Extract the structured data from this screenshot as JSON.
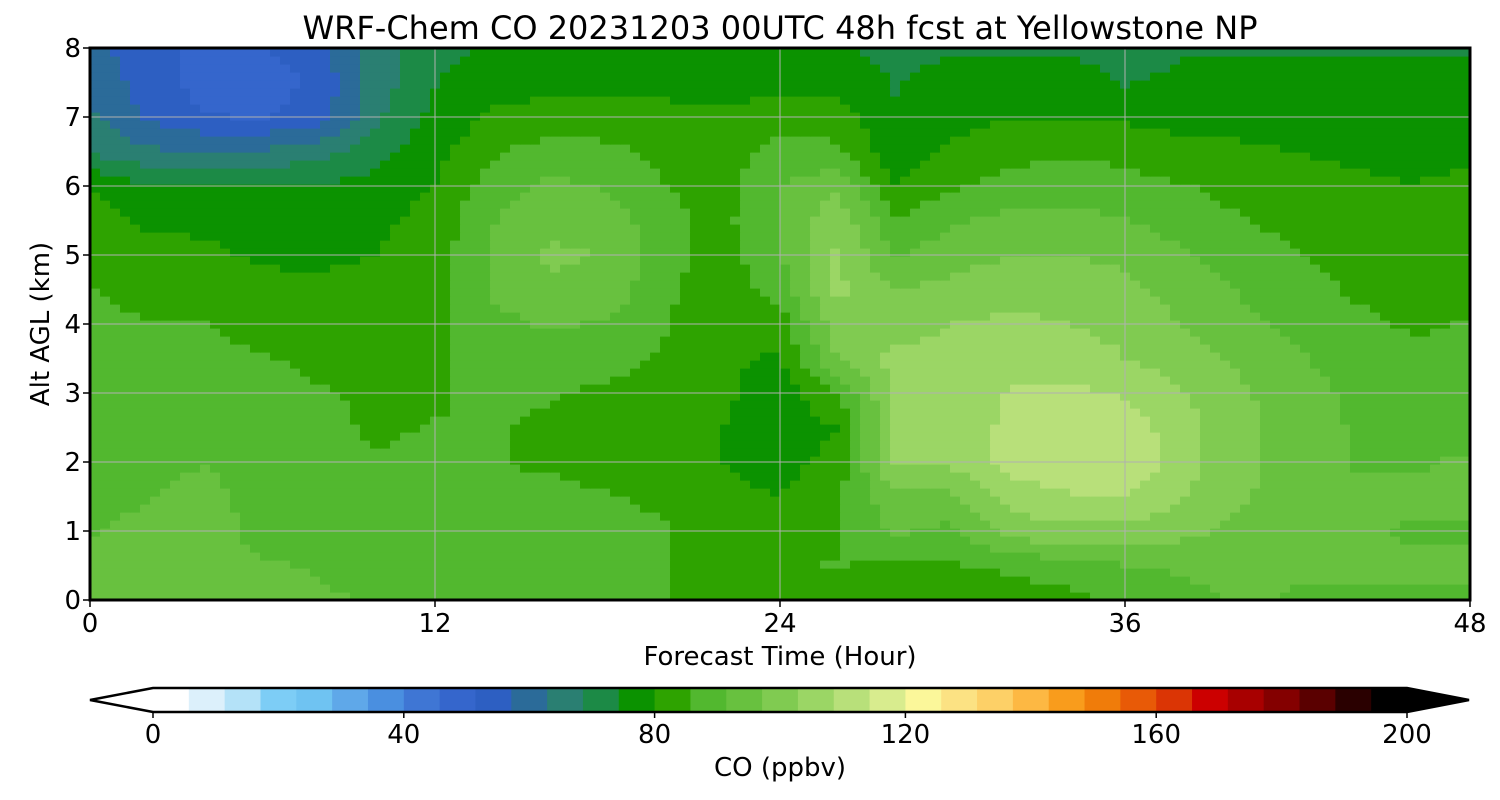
{
  "chart_data": {
    "type": "heatmap",
    "title": "WRF-Chem CO  20231203 00UTC 48h fcst at Yellowstone NP",
    "xlabel": "Forecast Time (Hour)",
    "ylabel": "Alt AGL (km)",
    "xlim": [
      0,
      48
    ],
    "ylim": [
      0,
      8
    ],
    "xticks": [
      "0",
      "12",
      "24",
      "36",
      "48"
    ],
    "yticks": [
      "0",
      "1",
      "2",
      "3",
      "4",
      "5",
      "6",
      "7",
      "8"
    ],
    "grid": true,
    "colorbar": {
      "label": "CO  (ppbv)",
      "range": [
        0,
        200
      ],
      "extend": "both",
      "ticks": [
        "0",
        "40",
        "80",
        "120",
        "160",
        "200"
      ],
      "colors": [
        "#ffffff",
        "#dcf0fb",
        "#b4e2f8",
        "#7dcdf6",
        "#6fc3f2",
        "#5fa8e9",
        "#4a8fe0",
        "#3f76d4",
        "#3566cc",
        "#2d5fc2",
        "#2b6b99",
        "#2a7f72",
        "#1c8a46",
        "#0b9200",
        "#2ea300",
        "#52b82f",
        "#68c13f",
        "#80cb51",
        "#9bd665",
        "#b8e07a",
        "#d8ec8e",
        "#fbf79a",
        "#fce283",
        "#fdd067",
        "#fdb843",
        "#f99c1c",
        "#f07c0a",
        "#e85a07",
        "#db3505",
        "#cc0000",
        "#a80000",
        "#840000",
        "#5a0000",
        "#2a0000",
        "#000000"
      ]
    },
    "x_hours": [
      0,
      2,
      4,
      6,
      8,
      10,
      12,
      14,
      16,
      18,
      20,
      22,
      24,
      26,
      28,
      30,
      32,
      34,
      36,
      38,
      40,
      42,
      44,
      46,
      48
    ],
    "z_km": [
      0,
      0.5,
      1,
      1.5,
      2,
      2.5,
      3,
      3.5,
      4,
      4.5,
      5,
      5.5,
      6,
      6.5,
      7,
      7.5,
      8
    ],
    "co_ppbv": [
      [
        96,
        97,
        97,
        94,
        92,
        91,
        89,
        88,
        88,
        87,
        86,
        83,
        83,
        84,
        82,
        82,
        82,
        84,
        87,
        90,
        92,
        91,
        91,
        91,
        91
      ],
      [
        93,
        94,
        95,
        92,
        91,
        90,
        89,
        88,
        88,
        87,
        86,
        84,
        85,
        86,
        84,
        85,
        87,
        89,
        91,
        92,
        93,
        92,
        92,
        92,
        92
      ],
      [
        91,
        93,
        95,
        89,
        86,
        87,
        88,
        88,
        88,
        87,
        86,
        82,
        83,
        85,
        92,
        90,
        100,
        101,
        101,
        99,
        95,
        93,
        92,
        91,
        91
      ],
      [
        90,
        91,
        94,
        88,
        86,
        86,
        87,
        87,
        87,
        86,
        85,
        81,
        80,
        85,
        96,
        96,
        105,
        108,
        109,
        103,
        98,
        94,
        93,
        92,
        92
      ],
      [
        89,
        90,
        91,
        88,
        87,
        86,
        87,
        86,
        85,
        84,
        83,
        80,
        78,
        82,
        103,
        104,
        111,
        113,
        114,
        105,
        99,
        94,
        91,
        91,
        92
      ],
      [
        89,
        90,
        90,
        88,
        87,
        85,
        86,
        86,
        85,
        84,
        84,
        80,
        77,
        80,
        104,
        105,
        110,
        113,
        112,
        105,
        99,
        94,
        91,
        90,
        90
      ],
      [
        88,
        88,
        88,
        87,
        86,
        85,
        85,
        87,
        86,
        85,
        84,
        81,
        77,
        85,
        104,
        105,
        109,
        110,
        108,
        103,
        98,
        94,
        90,
        89,
        88
      ],
      [
        88,
        88,
        87,
        86,
        85,
        84,
        85,
        88,
        88,
        87,
        85,
        81,
        79,
        97,
        105,
        104,
        106,
        106,
        103,
        100,
        96,
        92,
        89,
        87,
        87
      ],
      [
        87,
        86,
        86,
        84,
        83,
        83,
        84,
        90,
        92,
        91,
        86,
        81,
        83,
        101,
        100,
        103,
        104,
        103,
        101,
        97,
        93,
        90,
        87,
        85,
        86
      ],
      [
        86,
        84,
        84,
        82,
        81,
        82,
        84,
        92,
        96,
        95,
        87,
        82,
        88,
        104,
        97,
        99,
        101,
        101,
        99,
        95,
        91,
        88,
        85,
        84,
        85
      ],
      [
        85,
        82,
        81,
        79,
        79,
        80,
        83,
        92,
        98,
        97,
        88,
        83,
        91,
        104,
        91,
        95,
        97,
        97,
        96,
        92,
        89,
        86,
        84,
        83,
        84
      ],
      [
        83,
        79,
        79,
        77,
        77,
        79,
        82,
        91,
        96,
        95,
        87,
        84,
        92,
        102,
        86,
        91,
        93,
        93,
        92,
        89,
        86,
        84,
        83,
        82,
        83
      ],
      [
        80,
        75,
        75,
        75,
        75,
        77,
        80,
        89,
        93,
        91,
        86,
        84,
        91,
        96,
        80,
        85,
        88,
        89,
        88,
        86,
        84,
        82,
        81,
        80,
        81
      ],
      [
        68,
        64,
        63,
        64,
        66,
        72,
        78,
        85,
        88,
        87,
        84,
        83,
        88,
        87,
        76,
        81,
        84,
        85,
        84,
        82,
        81,
        80,
        79,
        79,
        79
      ],
      [
        64,
        56,
        52,
        51,
        55,
        68,
        76,
        81,
        83,
        83,
        82,
        81,
        84,
        83,
        75,
        78,
        80,
        80,
        79,
        78,
        78,
        77,
        77,
        77,
        77
      ],
      [
        62,
        54,
        49,
        48,
        53,
        66,
        74,
        77,
        78,
        78,
        78,
        77,
        78,
        78,
        74,
        76,
        76,
        76,
        74,
        75,
        75,
        75,
        75,
        75,
        75
      ],
      [
        60,
        53,
        50,
        51,
        56,
        66,
        73,
        75,
        75,
        75,
        75,
        75,
        75,
        75,
        73,
        74,
        74,
        74,
        73,
        74,
        74,
        74,
        74,
        74,
        74
      ]
    ]
  }
}
